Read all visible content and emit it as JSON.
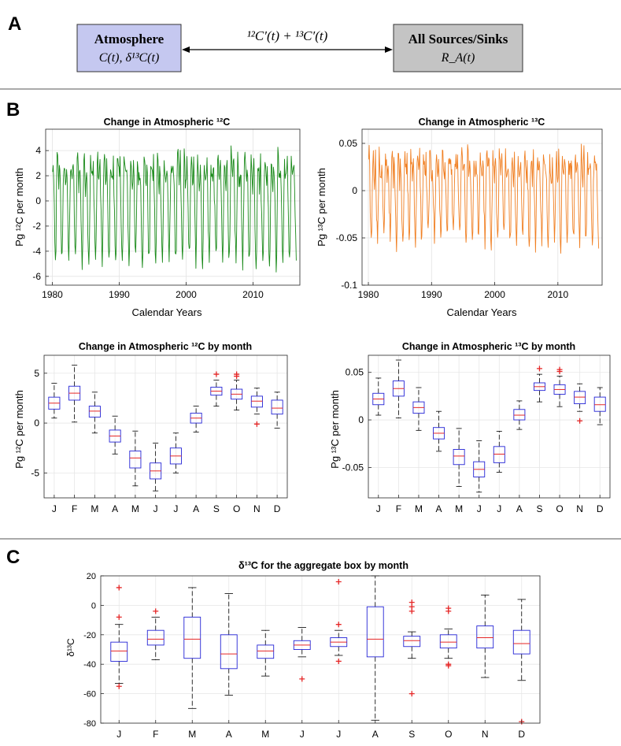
{
  "figure": {
    "panel_labels": [
      "A",
      "B",
      "C"
    ]
  },
  "panel_a": {
    "left_box": {
      "title": "Atmosphere",
      "formula": "C(t), δ¹³C(t)",
      "fill": "#c5c8f0"
    },
    "right_box": {
      "title": "All Sources/Sinks",
      "formula": "R_A(t)",
      "fill": "#c4c4c4"
    },
    "arrow_label": "¹²C′(t) + ¹³C′(t)"
  },
  "chart_data": [
    {
      "id": "c12_series",
      "type": "line",
      "title": "Change in Atmospheric ¹²C",
      "xlabel": "Calendar Years",
      "ylabel": "Pg ¹²C per month",
      "xlim": [
        1979,
        2017
      ],
      "ylim": [
        -6.7,
        5.7
      ],
      "xticks": [
        1980,
        1990,
        2000,
        2010
      ],
      "yticks": [
        -6,
        -4,
        -2,
        0,
        2,
        4
      ],
      "ytick_labels": [
        "-6",
        "-4",
        "-2",
        "0",
        "2",
        "4"
      ],
      "color": "#1a8a1a",
      "seasonal_mean": [
        2.0,
        3.0,
        1.2,
        -1.3,
        -3.5,
        -4.8,
        -3.3,
        0.5,
        3.2,
        2.9,
        2.2,
        1.5
      ],
      "start_year": 1980,
      "n_months": 438,
      "grid": true
    },
    {
      "id": "c13_series",
      "type": "line",
      "title": "Change in Atmospheric ¹³C",
      "xlabel": "Calendar Years",
      "ylabel": "Pg ¹³C per month",
      "xlim": [
        1979,
        2017
      ],
      "ylim": [
        -0.1,
        0.065
      ],
      "xticks": [
        1980,
        1990,
        2000,
        2010
      ],
      "yticks": [
        -0.1,
        -0.05,
        0,
        0.05
      ],
      "ytick_labels": [
        "-0.1",
        "-0.05",
        "0",
        "0.05"
      ],
      "color": "#f07f22",
      "seasonal_mean": [
        0.022,
        0.033,
        0.013,
        -0.014,
        -0.038,
        -0.052,
        -0.036,
        0.005,
        0.035,
        0.032,
        0.024,
        0.016
      ],
      "start_year": 1980,
      "n_months": 438,
      "grid": true
    },
    {
      "id": "c12_box",
      "type": "box",
      "title": "Change in Atmospheric ¹²C by month",
      "ylabel": "Pg ¹²C per month",
      "categories": [
        "J",
        "F",
        "M",
        "A",
        "M",
        "J",
        "J",
        "A",
        "S",
        "O",
        "N",
        "D"
      ],
      "ylim": [
        -7.5,
        6.8
      ],
      "yticks": [
        -5,
        0,
        5
      ],
      "ytick_labels": [
        "-5",
        "0",
        "5"
      ],
      "box_width": 0.55,
      "stats": [
        {
          "wlo": 0.5,
          "q1": 1.4,
          "med": 2.0,
          "q3": 2.6,
          "whi": 4.0,
          "out": []
        },
        {
          "wlo": 0.1,
          "q1": 2.3,
          "med": 3.0,
          "q3": 3.7,
          "whi": 5.8,
          "out": []
        },
        {
          "wlo": -1.0,
          "q1": 0.6,
          "med": 1.2,
          "q3": 1.7,
          "whi": 3.1,
          "out": []
        },
        {
          "wlo": -3.1,
          "q1": -1.9,
          "med": -1.3,
          "q3": -0.7,
          "whi": 0.7,
          "out": []
        },
        {
          "wlo": -6.3,
          "q1": -4.5,
          "med": -3.5,
          "q3": -2.8,
          "whi": -0.8,
          "out": []
        },
        {
          "wlo": -6.8,
          "q1": -5.6,
          "med": -4.8,
          "q3": -4.0,
          "whi": -2.0,
          "out": []
        },
        {
          "wlo": -5.0,
          "q1": -4.1,
          "med": -3.3,
          "q3": -2.5,
          "whi": -1.0,
          "out": []
        },
        {
          "wlo": -0.9,
          "q1": 0.0,
          "med": 0.5,
          "q3": 1.0,
          "whi": 1.7,
          "out": []
        },
        {
          "wlo": 1.7,
          "q1": 2.8,
          "med": 3.2,
          "q3": 3.6,
          "whi": 4.3,
          "out": [
            4.9
          ]
        },
        {
          "wlo": 1.3,
          "q1": 2.4,
          "med": 2.9,
          "q3": 3.4,
          "whi": 4.3,
          "out": [
            4.7,
            4.9
          ]
        },
        {
          "wlo": 0.9,
          "q1": 1.6,
          "med": 2.2,
          "q3": 2.7,
          "whi": 3.5,
          "out": [
            -0.1
          ]
        },
        {
          "wlo": -0.5,
          "q1": 0.9,
          "med": 1.5,
          "q3": 2.3,
          "whi": 3.1,
          "out": []
        }
      ]
    },
    {
      "id": "c13_box",
      "type": "box",
      "title": "Change in Atmospheric ¹³C by month",
      "ylabel": "Pg ¹³C per month",
      "categories": [
        "J",
        "F",
        "M",
        "A",
        "M",
        "J",
        "J",
        "A",
        "S",
        "O",
        "N",
        "D"
      ],
      "ylim": [
        -0.082,
        0.068
      ],
      "yticks": [
        -0.05,
        0,
        0.05
      ],
      "ytick_labels": [
        "-0.05",
        "0",
        "0.05"
      ],
      "box_width": 0.55,
      "stats": [
        {
          "wlo": 0.005,
          "q1": 0.016,
          "med": 0.022,
          "q3": 0.028,
          "whi": 0.044,
          "out": []
        },
        {
          "wlo": 0.002,
          "q1": 0.025,
          "med": 0.033,
          "q3": 0.041,
          "whi": 0.063,
          "out": []
        },
        {
          "wlo": -0.011,
          "q1": 0.007,
          "med": 0.013,
          "q3": 0.019,
          "whi": 0.034,
          "out": []
        },
        {
          "wlo": -0.033,
          "q1": -0.02,
          "med": -0.014,
          "q3": -0.008,
          "whi": 0.009,
          "out": []
        },
        {
          "wlo": -0.07,
          "q1": -0.047,
          "med": -0.038,
          "q3": -0.031,
          "whi": -0.009,
          "out": []
        },
        {
          "wlo": -0.076,
          "q1": -0.06,
          "med": -0.052,
          "q3": -0.044,
          "whi": -0.022,
          "out": []
        },
        {
          "wlo": -0.055,
          "q1": -0.045,
          "med": -0.036,
          "q3": -0.028,
          "whi": -0.012,
          "out": []
        },
        {
          "wlo": -0.01,
          "q1": 0.0,
          "med": 0.005,
          "q3": 0.011,
          "whi": 0.02,
          "out": []
        },
        {
          "wlo": 0.019,
          "q1": 0.031,
          "med": 0.035,
          "q3": 0.039,
          "whi": 0.048,
          "out": [
            0.054
          ]
        },
        {
          "wlo": 0.014,
          "q1": 0.027,
          "med": 0.032,
          "q3": 0.037,
          "whi": 0.046,
          "out": [
            0.051,
            0.053
          ]
        },
        {
          "wlo": 0.009,
          "q1": 0.017,
          "med": 0.024,
          "q3": 0.03,
          "whi": 0.038,
          "out": [
            -0.001
          ]
        },
        {
          "wlo": -0.005,
          "q1": 0.009,
          "med": 0.016,
          "q3": 0.024,
          "whi": 0.034,
          "out": []
        }
      ]
    },
    {
      "id": "d13c_box",
      "type": "box",
      "title": "δ¹³C for the aggregate box by month",
      "ylabel": "δ¹³C",
      "categories": [
        "J",
        "F",
        "M",
        "A",
        "M",
        "J",
        "J",
        "A",
        "S",
        "O",
        "N",
        "D"
      ],
      "ylim": [
        -80,
        20
      ],
      "yticks": [
        -80,
        -60,
        -40,
        -20,
        0,
        20
      ],
      "ytick_labels": [
        "-80",
        "-60",
        "-40",
        "-20",
        "0",
        "20"
      ],
      "box_width": 0.45,
      "stats": [
        {
          "wlo": -53,
          "q1": -38,
          "med": -31,
          "q3": -25,
          "whi": -13,
          "out": [
            12,
            -8,
            -55
          ]
        },
        {
          "wlo": -37,
          "q1": -27,
          "med": -23,
          "q3": -17,
          "whi": -8,
          "out": [
            -4
          ]
        },
        {
          "wlo": -70,
          "q1": -36,
          "med": -23,
          "q3": -8,
          "whi": 12,
          "out": []
        },
        {
          "wlo": -61,
          "q1": -43,
          "med": -33,
          "q3": -20,
          "whi": 8,
          "out": []
        },
        {
          "wlo": -48,
          "q1": -36,
          "med": -31,
          "q3": -27,
          "whi": -17,
          "out": []
        },
        {
          "wlo": -35,
          "q1": -30,
          "med": -27,
          "q3": -24,
          "whi": -15,
          "out": [
            -50
          ]
        },
        {
          "wlo": -34,
          "q1": -28,
          "med": -25,
          "q3": -22,
          "whi": -17,
          "out": [
            16,
            -13,
            -38
          ]
        },
        {
          "wlo": -78,
          "q1": -35,
          "med": -23,
          "q3": -1,
          "whi": 20,
          "out": []
        },
        {
          "wlo": -36,
          "q1": -28,
          "med": -24,
          "q3": -21,
          "whi": -18,
          "out": [
            2,
            -1,
            -4,
            -60
          ]
        },
        {
          "wlo": -36,
          "q1": -29,
          "med": -25,
          "q3": -20,
          "whi": -16,
          "out": [
            -2,
            -4,
            -40,
            -41
          ]
        },
        {
          "wlo": -49,
          "q1": -29,
          "med": -22,
          "q3": -14,
          "whi": 7,
          "out": []
        },
        {
          "wlo": -51,
          "q1": -33,
          "med": -26,
          "q3": -17,
          "whi": 4,
          "out": [
            -79
          ]
        }
      ]
    }
  ]
}
